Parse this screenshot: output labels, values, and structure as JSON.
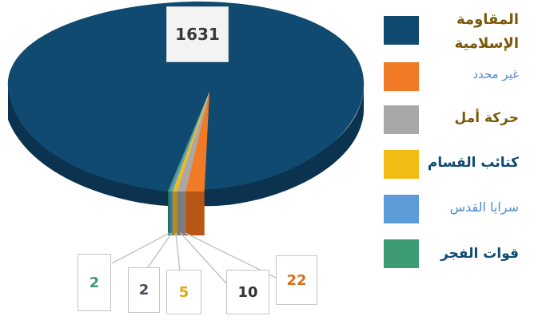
{
  "chart_data": {
    "type": "pie",
    "categories": [
      "المقاومة الإسلامية",
      "غير محدد",
      "حركة أمل",
      "كتائب القسام",
      "سرايا القدس",
      "قوات الفجر"
    ],
    "values": [
      1631,
      22,
      10,
      5,
      2,
      2
    ],
    "colors": [
      "#114a70",
      "#f07a26",
      "#a8a8a8",
      "#f2bc14",
      "#5b9bd8",
      "#3d9c74"
    ],
    "side_colors": [
      "#0b3350",
      "#b85615",
      "#7c7c7c",
      "#b98c0c",
      "#3f77ab",
      "#2a7154"
    ],
    "legend_position": "right"
  },
  "legend": [
    {
      "label": "المقاومة الإسلامية",
      "color": "#114a70",
      "text_color": "#7a5a08"
    },
    {
      "label": "غير محدد",
      "color": "#f07a26",
      "text_color": "#4f8cd0"
    },
    {
      "label": "حركة أمل",
      "color": "#a8a8a8",
      "text_color": "#7a5a08"
    },
    {
      "label": "كتائب القسام",
      "color": "#f2bc14",
      "text_color": "#0f4a72"
    },
    {
      "label": "سرايا القدس",
      "color": "#5b9bd8",
      "text_color": "#4f8cd0"
    },
    {
      "label": "قوات الفجر",
      "color": "#3d9c74",
      "text_color": "#0f4a72"
    }
  ],
  "value_labels": {
    "main": "1631",
    "unspecified": "22",
    "amal": "10",
    "qassam": "5",
    "saraya": "2",
    "fajr": "2"
  },
  "value_label_colors": {
    "unspecified": "#d8701e",
    "amal": "#333333",
    "qassam": "#e0a811",
    "saraya": "#4a4a5a",
    "fajr": "#3d9c74"
  }
}
